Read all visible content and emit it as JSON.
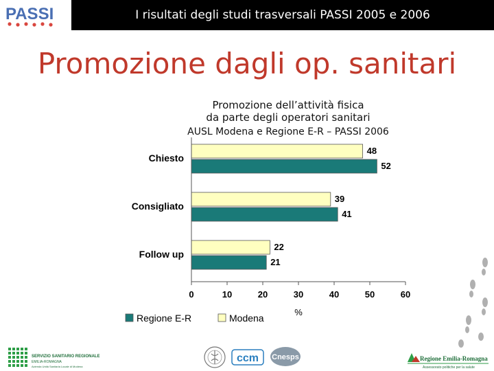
{
  "header": {
    "title": "I risultati degli studi trasversali  PASSI 2005 e 2006",
    "logo_text": "PASSI",
    "bar_color": "#000000"
  },
  "page": {
    "title": "Promozione dagli op. sanitari",
    "title_color": "#c0392b"
  },
  "chart_data": {
    "type": "bar",
    "orientation": "horizontal",
    "title_lines": [
      "Promozione dell’attività fisica",
      "da parte degli operatori sanitari"
    ],
    "subtitle": "AUSL Modena e Regione E-R – PASSI 2006",
    "categories": [
      "Chiesto",
      "Consigliato",
      "Follow up"
    ],
    "series": [
      {
        "name": "Modena",
        "values": [
          48,
          39,
          22
        ],
        "color": "#ffffc0"
      },
      {
        "name": "Regione E-R",
        "values": [
          52,
          41,
          21
        ],
        "color": "#1a7a78"
      }
    ],
    "xlim": [
      0,
      60
    ],
    "xticks": [
      0,
      10,
      20,
      30,
      40,
      50,
      60
    ],
    "xlabel": "%",
    "grid": false,
    "legend_position": "bottom-left",
    "legend_order": [
      "Regione E-R",
      "Modena"
    ]
  },
  "footer": {
    "logos": [
      {
        "name": "servizio-sanitario-regionale-logo",
        "lines": [
          "SERVIZIO SANITARIO REGIONALE",
          "EMILIA-ROMAGNA",
          "Azienda Unità Sanitaria Locale di Modena"
        ]
      },
      {
        "name": "ministero-logo"
      },
      {
        "name": "ccm-logo",
        "text": "ccm"
      },
      {
        "name": "cnesps-logo",
        "text": "Cnesps"
      },
      {
        "name": "regione-emilia-romagna-logo",
        "lines": [
          "Regione Emilia-Romagna",
          "Assessorato politiche per la salute"
        ]
      }
    ]
  }
}
